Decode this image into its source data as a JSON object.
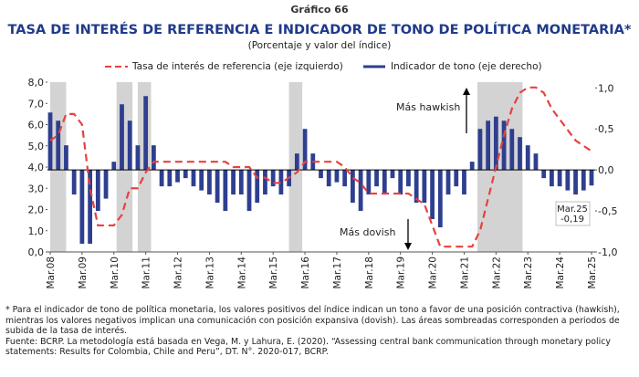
{
  "chart_data": {
    "type": "bar_line",
    "label": "Gráfico 66",
    "title": "TASA DE INTERÉS DE REFERENCIA E INDICADOR DE TONO DE POLÍTICA MONETARIA*",
    "subtitle": "(Porcentaje y valor del índice)",
    "x": [
      "2008-03",
      "2008-06",
      "2008-09",
      "2008-12",
      "2009-03",
      "2009-06",
      "2009-09",
      "2009-12",
      "2010-03",
      "2010-06",
      "2010-09",
      "2010-12",
      "2011-03",
      "2011-06",
      "2011-09",
      "2011-12",
      "2012-03",
      "2012-06",
      "2012-09",
      "2012-12",
      "2013-03",
      "2013-06",
      "2013-09",
      "2013-12",
      "2014-03",
      "2014-06",
      "2014-09",
      "2014-12",
      "2015-03",
      "2015-06",
      "2015-09",
      "2015-12",
      "2016-03",
      "2016-06",
      "2016-09",
      "2016-12",
      "2017-03",
      "2017-06",
      "2017-09",
      "2017-12",
      "2018-03",
      "2018-06",
      "2018-09",
      "2018-12",
      "2019-03",
      "2019-06",
      "2019-09",
      "2019-12",
      "2020-03",
      "2020-06",
      "2020-09",
      "2020-12",
      "2021-03",
      "2021-06",
      "2021-09",
      "2021-12",
      "2022-03",
      "2022-06",
      "2022-09",
      "2022-12",
      "2023-03",
      "2023-06",
      "2023-09",
      "2023-12",
      "2024-03",
      "2024-06",
      "2024-09",
      "2024-12",
      "2025-03"
    ],
    "xlim": [
      "2008-03",
      "2025-03"
    ],
    "xticks": [
      {
        "value": "2008-03",
        "label": "Mar.08"
      },
      {
        "value": "2009-03",
        "label": "Mar.09"
      },
      {
        "value": "2010-03",
        "label": "Mar.10"
      },
      {
        "value": "2011-03",
        "label": "Mar.11"
      },
      {
        "value": "2012-03",
        "label": "Mar.12"
      },
      {
        "value": "2013-03",
        "label": "Mar.13"
      },
      {
        "value": "2014-03",
        "label": "Mar.14"
      },
      {
        "value": "2015-03",
        "label": "Mar.15"
      },
      {
        "value": "2016-03",
        "label": "Mar.16"
      },
      {
        "value": "2017-03",
        "label": "Mar.17"
      },
      {
        "value": "2018-03",
        "label": "Mar.18"
      },
      {
        "value": "2019-03",
        "label": "Mar.19"
      },
      {
        "value": "2020-03",
        "label": "Mar.20"
      },
      {
        "value": "2021-03",
        "label": "Mar.21"
      },
      {
        "value": "2022-03",
        "label": "Mar.22"
      },
      {
        "value": "2023-03",
        "label": "Mar.23"
      },
      {
        "value": "2024-03",
        "label": "Mar.24"
      },
      {
        "value": "2025-03",
        "label": "Mar.25"
      }
    ],
    "ylim": [
      0,
      8
    ],
    "yticks": [
      {
        "value": 0,
        "label": "0,0"
      },
      {
        "value": 1,
        "label": "1,0"
      },
      {
        "value": 2,
        "label": "2,0"
      },
      {
        "value": 3,
        "label": "3,0"
      },
      {
        "value": 4,
        "label": "4,0"
      },
      {
        "value": 5,
        "label": "5,0"
      },
      {
        "value": 6,
        "label": "6,0"
      },
      {
        "value": 7,
        "label": "7,0"
      },
      {
        "value": 8,
        "label": "8,0"
      }
    ],
    "y2lim": [
      -1,
      1.07
    ],
    "y2ticks": [
      {
        "value": -1,
        "label": "-1,0"
      },
      {
        "value": -0.5,
        "label": "-0,5"
      },
      {
        "value": 0,
        "label": "0,0"
      },
      {
        "value": 0.5,
        "label": "0,5"
      },
      {
        "value": 1,
        "label": "1,0"
      }
    ],
    "shaded_periods": [
      {
        "start": "2008-03",
        "end": "2008-09"
      },
      {
        "start": "2010-04",
        "end": "2010-10"
      },
      {
        "start": "2010-12",
        "end": "2011-05"
      },
      {
        "start": "2015-09",
        "end": "2016-02"
      },
      {
        "start": "2021-08",
        "end": "2023-01"
      }
    ],
    "series": [
      {
        "name": "Tasa de interés de referencia (eje izquierdo)",
        "kind": "line",
        "axis": "y",
        "color": "#e8413f",
        "values": [
          5.25,
          5.5,
          6.5,
          6.5,
          6.0,
          3.0,
          1.25,
          1.25,
          1.25,
          1.75,
          3.0,
          3.0,
          3.75,
          4.25,
          4.25,
          4.25,
          4.25,
          4.25,
          4.25,
          4.25,
          4.25,
          4.25,
          4.25,
          4.0,
          4.0,
          4.0,
          3.5,
          3.5,
          3.25,
          3.25,
          3.5,
          3.75,
          4.25,
          4.25,
          4.25,
          4.25,
          4.25,
          4.0,
          3.5,
          3.25,
          2.75,
          2.75,
          2.75,
          2.75,
          2.75,
          2.75,
          2.5,
          2.25,
          1.25,
          0.25,
          0.25,
          0.25,
          0.25,
          0.25,
          1.0,
          2.5,
          4.0,
          5.5,
          6.75,
          7.5,
          7.75,
          7.75,
          7.5,
          6.75,
          6.25,
          5.75,
          5.25,
          5.0,
          4.75
        ]
      },
      {
        "name": "Indicador de tono (eje derecho)",
        "kind": "bar",
        "axis": "y2",
        "color": "#2e3f8f",
        "values": [
          0.7,
          0.6,
          0.3,
          -0.3,
          -0.9,
          -0.9,
          -0.5,
          -0.35,
          0.1,
          0.8,
          0.6,
          0.3,
          0.9,
          0.3,
          -0.2,
          -0.2,
          -0.15,
          -0.1,
          -0.2,
          -0.25,
          -0.3,
          -0.4,
          -0.5,
          -0.3,
          -0.3,
          -0.5,
          -0.4,
          -0.3,
          -0.2,
          -0.3,
          -0.2,
          0.2,
          0.5,
          0.2,
          -0.1,
          -0.2,
          -0.15,
          -0.2,
          -0.4,
          -0.5,
          -0.3,
          -0.2,
          -0.3,
          -0.1,
          -0.3,
          -0.2,
          -0.4,
          -0.4,
          -0.6,
          -0.7,
          -0.3,
          -0.2,
          -0.3,
          0.1,
          0.5,
          0.6,
          0.65,
          0.6,
          0.5,
          0.4,
          0.3,
          0.2,
          -0.1,
          -0.2,
          -0.2,
          -0.25,
          -0.3,
          -0.25,
          -0.19
        ],
        "value_labels": [
          null,
          null,
          null,
          null,
          null,
          null,
          null,
          null,
          null,
          null,
          null,
          null,
          null,
          null,
          null,
          null,
          null,
          null,
          null,
          null,
          null,
          null,
          null,
          null,
          null,
          null,
          null,
          null,
          null,
          null,
          null,
          null,
          null,
          null,
          null,
          null,
          null,
          null,
          null,
          null,
          null,
          null,
          null,
          null,
          null,
          null,
          null,
          null,
          null,
          null,
          null,
          null,
          null,
          null,
          null,
          null,
          null,
          null,
          null,
          null,
          null,
          null,
          null,
          null,
          null,
          null,
          null,
          null,
          "-0,19"
        ]
      }
    ],
    "annotations": {
      "hawkish": "Más hawkish",
      "dovish": "Más dovish",
      "last_date": "Mar.25"
    }
  },
  "notes": [
    "* Para el indicador de tono de política monetaria, los valores positivos del índice indican un tono a favor de una posición contractiva (hawkish), mientras los valores negativos implican una comunicación con posición expansiva (dovish). Las áreas sombreadas corresponden a periodos de subida de la tasa de interés.",
    "Fuente: BCRP. La metodología está basada en Vega, M. y Lahura, E. (2020). “Assessing central bank communication through monetary policy statements: Results for Colombia, Chile and Peru”, DT. N°. 2020-017, BCRP."
  ]
}
